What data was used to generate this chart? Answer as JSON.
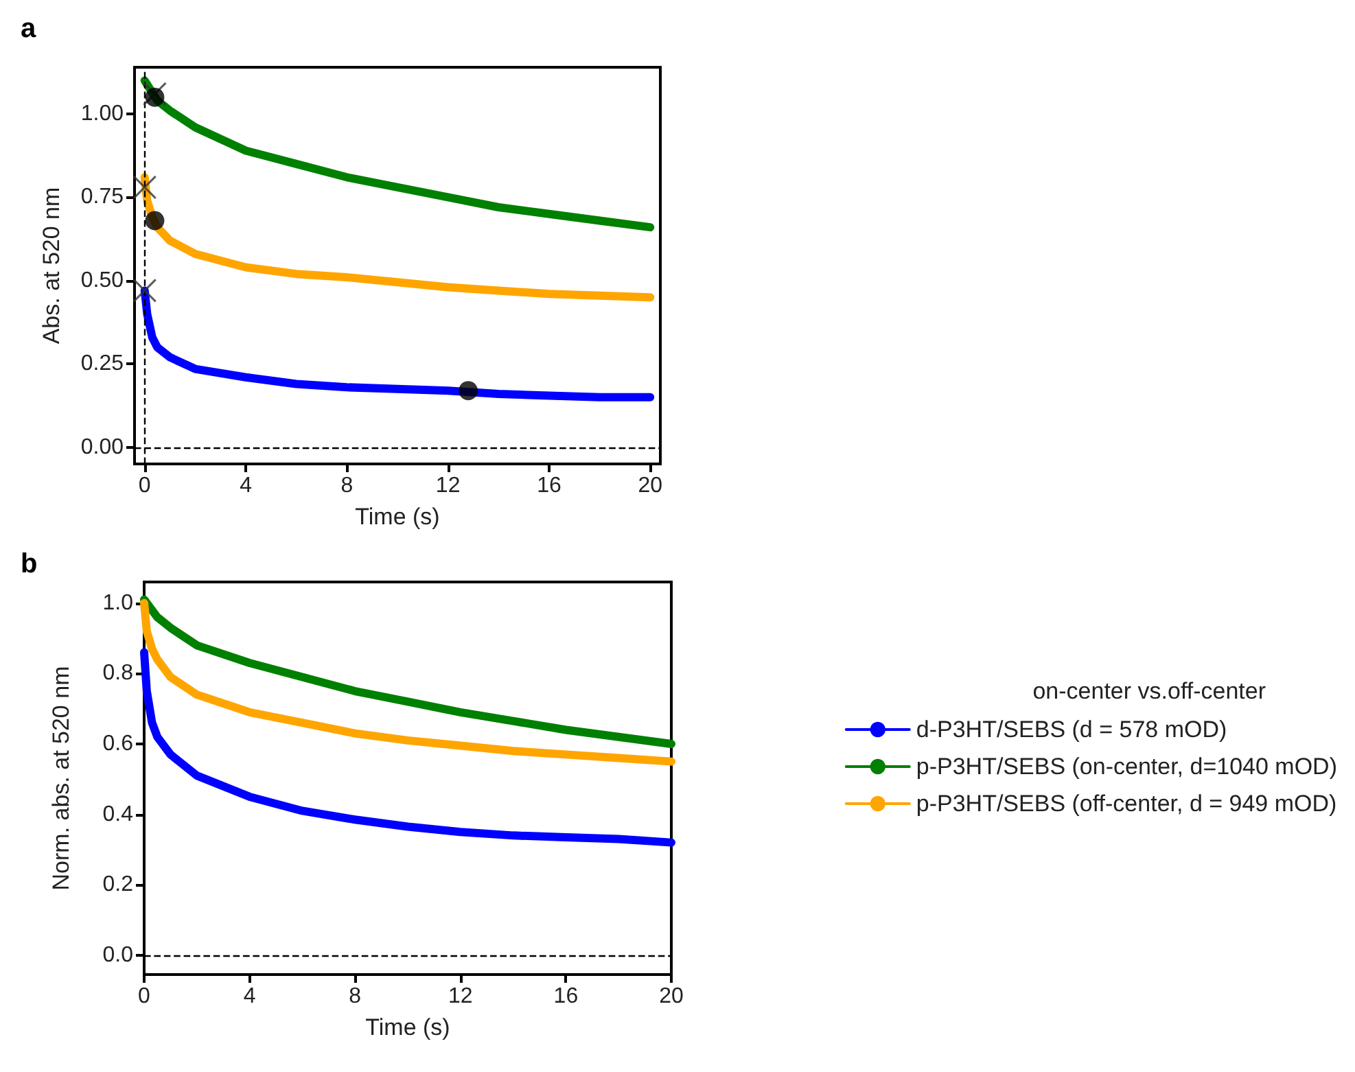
{
  "chart_data": [
    {
      "type": "line",
      "title": "a",
      "xlabel": "Time (s)",
      "ylabel": "Abs. at 520 nm",
      "xlim": [
        -0.4,
        20.4
      ],
      "xticks": [
        0,
        4,
        8,
        12,
        16,
        20
      ],
      "ylim": [
        -0.05,
        1.14
      ],
      "yticks": [
        {
          "value": 0,
          "label": "0.00"
        },
        {
          "value": 0.25,
          "label": "0.25"
        },
        {
          "value": 0.5,
          "label": "0.50"
        },
        {
          "value": 0.75,
          "label": "0.75"
        },
        {
          "value": 1,
          "label": "1.00"
        }
      ],
      "grid": false,
      "legend": false,
      "ref_lines": [
        {
          "axis": "x",
          "value": 0,
          "label": null,
          "color": "#000000",
          "line_style": "dashed"
        },
        {
          "axis": "y",
          "value": 0,
          "label": null,
          "color": "#000000",
          "line_style": "dashed"
        }
      ],
      "series": [
        {
          "color": "#0000ff",
          "x": [
            0,
            0.1,
            0.3,
            0.5,
            1,
            2,
            4,
            6,
            8,
            10,
            12,
            14,
            16,
            18,
            20
          ],
          "values": [
            0.47,
            0.4,
            0.33,
            0.3,
            0.27,
            0.235,
            0.21,
            0.19,
            0.18,
            0.175,
            0.17,
            0.16,
            0.155,
            0.15,
            0.15
          ]
        },
        {
          "color": "#008000",
          "x": [
            0,
            0.5,
            1,
            2,
            4,
            6,
            8,
            10,
            12,
            14,
            16,
            18,
            20
          ],
          "values": [
            1.1,
            1.04,
            1.01,
            0.96,
            0.89,
            0.85,
            0.81,
            0.78,
            0.75,
            0.72,
            0.7,
            0.68,
            0.66
          ]
        },
        {
          "color": "#ffa500",
          "x": [
            0,
            0.1,
            0.3,
            0.5,
            1,
            2,
            4,
            6,
            8,
            10,
            12,
            14,
            16,
            18,
            20
          ],
          "values": [
            0.81,
            0.74,
            0.69,
            0.66,
            0.62,
            0.58,
            0.54,
            0.52,
            0.51,
            0.495,
            0.48,
            0.47,
            0.46,
            0.455,
            0.45
          ]
        },
        {
          "type": "scatter",
          "marker": "cross",
          "color": "#333333",
          "x": [
            0.4,
            0,
            0
          ],
          "values": [
            1.06,
            0.78,
            0.47
          ]
        },
        {
          "type": "scatter",
          "marker": "circle",
          "color": "#000000",
          "x": [
            0.4,
            0.4,
            12.8
          ],
          "values": [
            1.05,
            0.68,
            0.17
          ]
        }
      ]
    },
    {
      "type": "line",
      "title": "b",
      "xlabel": "Time (s)",
      "ylabel": "Norm. abs. at 520 nm",
      "xlim": [
        0,
        20
      ],
      "xticks": [
        0,
        4,
        8,
        12,
        16,
        20
      ],
      "ylim": [
        -0.055,
        1.06
      ],
      "yticks": [
        {
          "value": 0,
          "label": "0.0"
        },
        {
          "value": 0.2,
          "label": "0.2"
        },
        {
          "value": 0.4,
          "label": "0.4"
        },
        {
          "value": 0.6,
          "label": "0.6"
        },
        {
          "value": 0.8,
          "label": "0.8"
        },
        {
          "value": 1,
          "label": "1.0"
        }
      ],
      "grid": false,
      "legend": "right",
      "legend_title": "on-center vs.off-center",
      "ref_lines": [
        {
          "axis": "y",
          "value": 0,
          "label": null,
          "color": "#000000",
          "line_style": "dashed"
        }
      ],
      "series": [
        {
          "name": "d-P3HT/SEBS (d = 578 mOD)",
          "color": "#0000ff",
          "x": [
            0,
            0.1,
            0.3,
            0.5,
            1,
            2,
            4,
            6,
            8,
            10,
            12,
            14,
            16,
            18,
            20
          ],
          "values": [
            0.86,
            0.75,
            0.66,
            0.62,
            0.57,
            0.51,
            0.45,
            0.41,
            0.385,
            0.365,
            0.35,
            0.34,
            0.335,
            0.33,
            0.32
          ]
        },
        {
          "name": "p-P3HT/SEBS (on-center, d=1040 mOD)",
          "color": "#008000",
          "x": [
            0,
            0.5,
            1,
            2,
            4,
            6,
            8,
            10,
            12,
            14,
            16,
            18,
            20
          ],
          "values": [
            1.01,
            0.96,
            0.93,
            0.88,
            0.83,
            0.79,
            0.75,
            0.72,
            0.69,
            0.665,
            0.64,
            0.62,
            0.6
          ]
        },
        {
          "name": "p-P3HT/SEBS (off-center, d = 949 mOD)",
          "color": "#ffa500",
          "x": [
            0,
            0.1,
            0.3,
            0.5,
            1,
            2,
            4,
            6,
            8,
            10,
            12,
            14,
            16,
            18,
            20
          ],
          "values": [
            1.0,
            0.92,
            0.87,
            0.84,
            0.79,
            0.74,
            0.69,
            0.66,
            0.63,
            0.61,
            0.595,
            0.58,
            0.57,
            0.56,
            0.55
          ]
        }
      ]
    }
  ]
}
